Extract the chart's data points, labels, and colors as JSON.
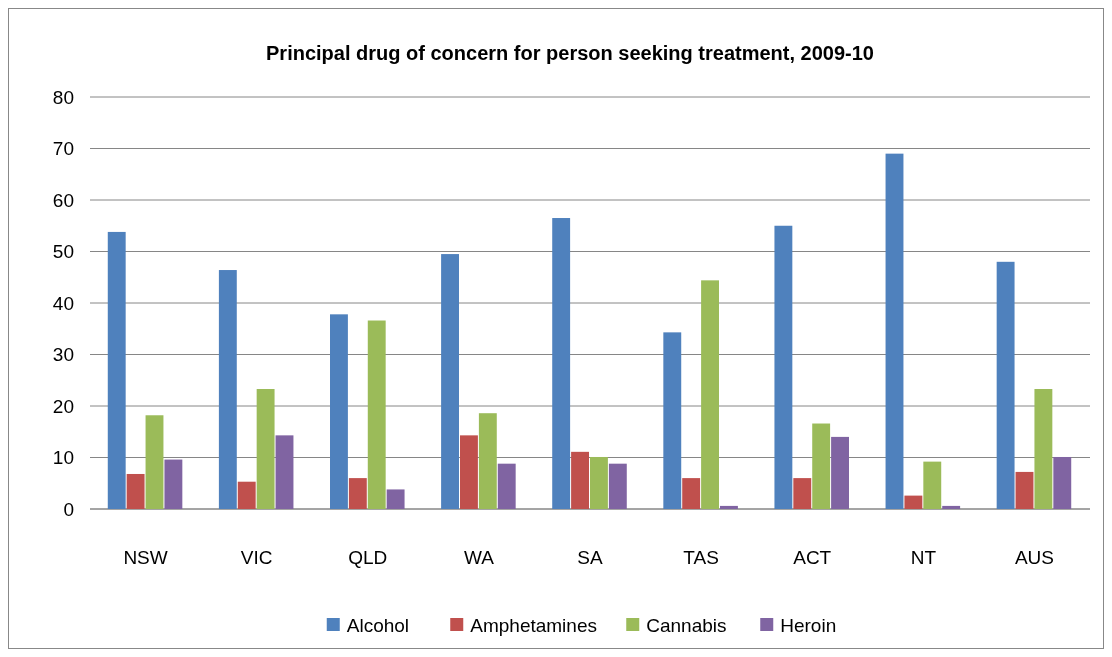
{
  "chart_data": {
    "type": "bar",
    "title": "Principal drug of concern for person seeking treatment, 2009-10",
    "categories": [
      "NSW",
      "VIC",
      "QLD",
      "WA",
      "SA",
      "TAS",
      "ACT",
      "NT",
      "AUS"
    ],
    "series": [
      {
        "name": "Alcohol",
        "color": "#4f81bd",
        "values": [
          53.8,
          46.4,
          37.8,
          49.5,
          56.5,
          34.3,
          55.0,
          69.0,
          48.0
        ]
      },
      {
        "name": "Amphetamines",
        "color": "#c0504d",
        "values": [
          6.8,
          5.3,
          6.0,
          14.3,
          11.1,
          6.0,
          6.0,
          2.6,
          7.2
        ]
      },
      {
        "name": "Cannabis",
        "color": "#9bbb59",
        "values": [
          18.2,
          23.3,
          36.6,
          18.6,
          10.1,
          44.4,
          16.6,
          9.2,
          23.3
        ]
      },
      {
        "name": "Heroin",
        "color": "#8064a2",
        "values": [
          9.6,
          14.3,
          3.8,
          8.8,
          8.8,
          0.6,
          14.0,
          0.6,
          10.1
        ]
      }
    ],
    "ylim": [
      0,
      80
    ],
    "yticks": [
      0,
      10,
      20,
      30,
      40,
      50,
      60,
      70,
      80
    ],
    "grid": "y",
    "legend": "bottom"
  }
}
